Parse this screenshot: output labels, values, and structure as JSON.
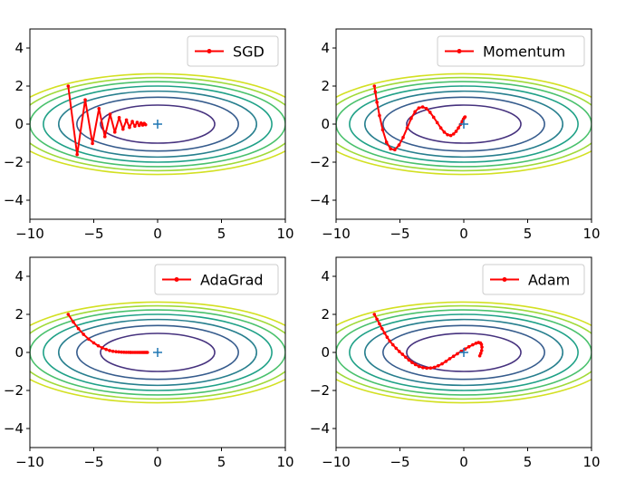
{
  "colors": {
    "path": "#ff0000",
    "minimum_marker": "#1f77b4",
    "contours": [
      "#46327e",
      "#365c8d",
      "#277f8e",
      "#1fa187",
      "#4ac16d",
      "#a0da39",
      "#d3e022"
    ],
    "axes": "#000000",
    "legend_border": "#cccccc"
  },
  "chart_data": [
    {
      "type": "line",
      "title": "",
      "xlabel": "",
      "ylabel": "",
      "xlim": [
        -10,
        10
      ],
      "ylim": [
        -5,
        5
      ],
      "x_ticks": [
        -10,
        -5,
        0,
        5,
        10
      ],
      "x_tick_labels": [
        "−10",
        "−5",
        "0",
        "5",
        "10"
      ],
      "y_ticks": [
        -4,
        -2,
        0,
        2,
        4
      ],
      "y_tick_labels": [
        "−4",
        "−2",
        "0",
        "2",
        "4"
      ],
      "legend": {
        "entries": [
          "SGD"
        ],
        "placement": "top-right"
      },
      "function": "f(x, y) = x^2 / 20 + y^2",
      "contour_levels": [
        1,
        2,
        3,
        4,
        5,
        6,
        7
      ],
      "minimum_marker": {
        "x": 0,
        "y": 0
      },
      "series": [
        {
          "name": "SGD",
          "x": [
            -7.0,
            -6.3,
            -5.67,
            -5.1,
            -4.59,
            -4.13,
            -3.72,
            -3.35,
            -3.01,
            -2.71,
            -2.44,
            -2.2,
            -1.98,
            -1.78,
            -1.6,
            -1.44,
            -1.3,
            -1.17,
            -1.05,
            -0.94
          ],
          "y": [
            2.0,
            -1.6,
            1.28,
            -1.02,
            0.82,
            -0.66,
            0.52,
            -0.42,
            0.34,
            -0.27,
            0.22,
            -0.17,
            0.14,
            -0.11,
            0.09,
            -0.07,
            0.06,
            -0.05,
            0.04,
            -0.03
          ]
        }
      ]
    },
    {
      "type": "line",
      "title": "",
      "xlabel": "",
      "ylabel": "",
      "xlim": [
        -10,
        10
      ],
      "ylim": [
        -5,
        5
      ],
      "x_ticks": [
        -10,
        -5,
        0,
        5,
        10
      ],
      "x_tick_labels": [
        "−10",
        "−5",
        "0",
        "5",
        "10"
      ],
      "y_ticks": [
        -4,
        -2,
        0,
        2,
        4
      ],
      "y_tick_labels": [
        "−4",
        "−2",
        "0",
        "2",
        "4"
      ],
      "legend": {
        "entries": [
          "Momentum"
        ],
        "placement": "top-right"
      },
      "function": "f(x, y) = x^2 / 20 + y^2",
      "contour_levels": [
        1,
        2,
        3,
        4,
        5,
        6,
        7
      ],
      "minimum_marker": {
        "x": 0,
        "y": 0
      },
      "series": [
        {
          "name": "Momentum",
          "x": [
            -7.0,
            -6.93,
            -6.8,
            -6.6,
            -6.35,
            -6.05,
            -5.73,
            -5.4,
            -5.07,
            -4.75,
            -4.43,
            -4.12,
            -3.82,
            -3.52,
            -3.22,
            -2.93,
            -2.64,
            -2.36,
            -2.08,
            -1.8,
            -1.53,
            -1.27,
            -1.02,
            -0.8,
            -0.6,
            -0.42,
            -0.26,
            -0.13,
            -0.03,
            0.05,
            0.1
          ],
          "y": [
            2.0,
            1.7,
            1.15,
            0.45,
            -0.3,
            -0.95,
            -1.3,
            -1.35,
            -1.1,
            -0.7,
            -0.2,
            0.3,
            0.65,
            0.85,
            0.9,
            0.82,
            0.62,
            0.36,
            0.08,
            -0.2,
            -0.42,
            -0.56,
            -0.6,
            -0.52,
            -0.38,
            -0.2,
            -0.02,
            0.14,
            0.26,
            0.34,
            0.38
          ]
        }
      ]
    },
    {
      "type": "line",
      "title": "",
      "xlabel": "",
      "ylabel": "",
      "xlim": [
        -10,
        10
      ],
      "ylim": [
        -5,
        5
      ],
      "x_ticks": [
        -10,
        -5,
        0,
        5,
        10
      ],
      "x_tick_labels": [
        "−10",
        "−5",
        "0",
        "5",
        "10"
      ],
      "y_ticks": [
        -4,
        -2,
        0,
        2,
        4
      ],
      "y_tick_labels": [
        "−4",
        "−2",
        "0",
        "2",
        "4"
      ],
      "legend": {
        "entries": [
          "AdaGrad"
        ],
        "placement": "top-right"
      },
      "function": "f(x, y) = x^2 / 20 + y^2",
      "contour_levels": [
        1,
        2,
        3,
        4,
        5,
        6,
        7
      ],
      "minimum_marker": {
        "x": 0,
        "y": 0
      },
      "series": [
        {
          "name": "AdaGrad",
          "x": [
            -7.0,
            -6.6,
            -6.2,
            -5.8,
            -5.4,
            -5.0,
            -4.65,
            -4.33,
            -4.03,
            -3.76,
            -3.5,
            -3.26,
            -3.04,
            -2.83,
            -2.64,
            -2.46,
            -2.29,
            -2.13,
            -1.98,
            -1.84,
            -1.71,
            -1.58,
            -1.46,
            -1.35,
            -1.24,
            -1.14,
            -1.05,
            -0.96,
            -0.88,
            -0.8
          ],
          "y": [
            2.0,
            1.6,
            1.25,
            0.95,
            0.7,
            0.5,
            0.35,
            0.24,
            0.16,
            0.1,
            0.06,
            0.04,
            0.025,
            0.015,
            0.01,
            0.006,
            0.004,
            0.002,
            0.0,
            0.0,
            0.0,
            0.0,
            0.0,
            0.0,
            0.0,
            0.0,
            0.0,
            0.0,
            0.0,
            0.0
          ]
        }
      ]
    },
    {
      "type": "line",
      "title": "",
      "xlabel": "",
      "ylabel": "",
      "xlim": [
        -10,
        10
      ],
      "ylim": [
        -5,
        5
      ],
      "x_ticks": [
        -10,
        -5,
        0,
        5,
        10
      ],
      "x_tick_labels": [
        "−10",
        "−5",
        "0",
        "5",
        "10"
      ],
      "y_ticks": [
        -4,
        -2,
        0,
        2,
        4
      ],
      "y_tick_labels": [
        "−4",
        "−2",
        "0",
        "2",
        "4"
      ],
      "legend": {
        "entries": [
          "Adam"
        ],
        "placement": "top-right"
      },
      "function": "f(x, y) = x^2 / 20 + y^2",
      "contour_levels": [
        1,
        2,
        3,
        4,
        5,
        6,
        7
      ],
      "minimum_marker": {
        "x": 0,
        "y": 0
      },
      "series": [
        {
          "name": "Adam",
          "x": [
            -7.0,
            -6.8,
            -6.6,
            -6.4,
            -6.2,
            -6.0,
            -5.8,
            -5.55,
            -5.3,
            -5.05,
            -4.8,
            -4.55,
            -4.3,
            -4.05,
            -3.78,
            -3.5,
            -3.2,
            -2.9,
            -2.6,
            -2.3,
            -2.0,
            -1.7,
            -1.4,
            -1.1,
            -0.8,
            -0.5,
            -0.2,
            0.1,
            0.4,
            0.7,
            0.95,
            1.15,
            1.3,
            1.38,
            1.42,
            1.4,
            1.33,
            1.25
          ],
          "y": [
            2.0,
            1.75,
            1.5,
            1.25,
            1.02,
            0.8,
            0.6,
            0.4,
            0.22,
            0.05,
            -0.1,
            -0.25,
            -0.4,
            -0.53,
            -0.64,
            -0.74,
            -0.8,
            -0.83,
            -0.82,
            -0.78,
            -0.7,
            -0.6,
            -0.47,
            -0.33,
            -0.2,
            -0.07,
            0.06,
            0.18,
            0.3,
            0.4,
            0.48,
            0.52,
            0.5,
            0.42,
            0.28,
            0.1,
            -0.05,
            -0.18
          ]
        }
      ]
    }
  ]
}
